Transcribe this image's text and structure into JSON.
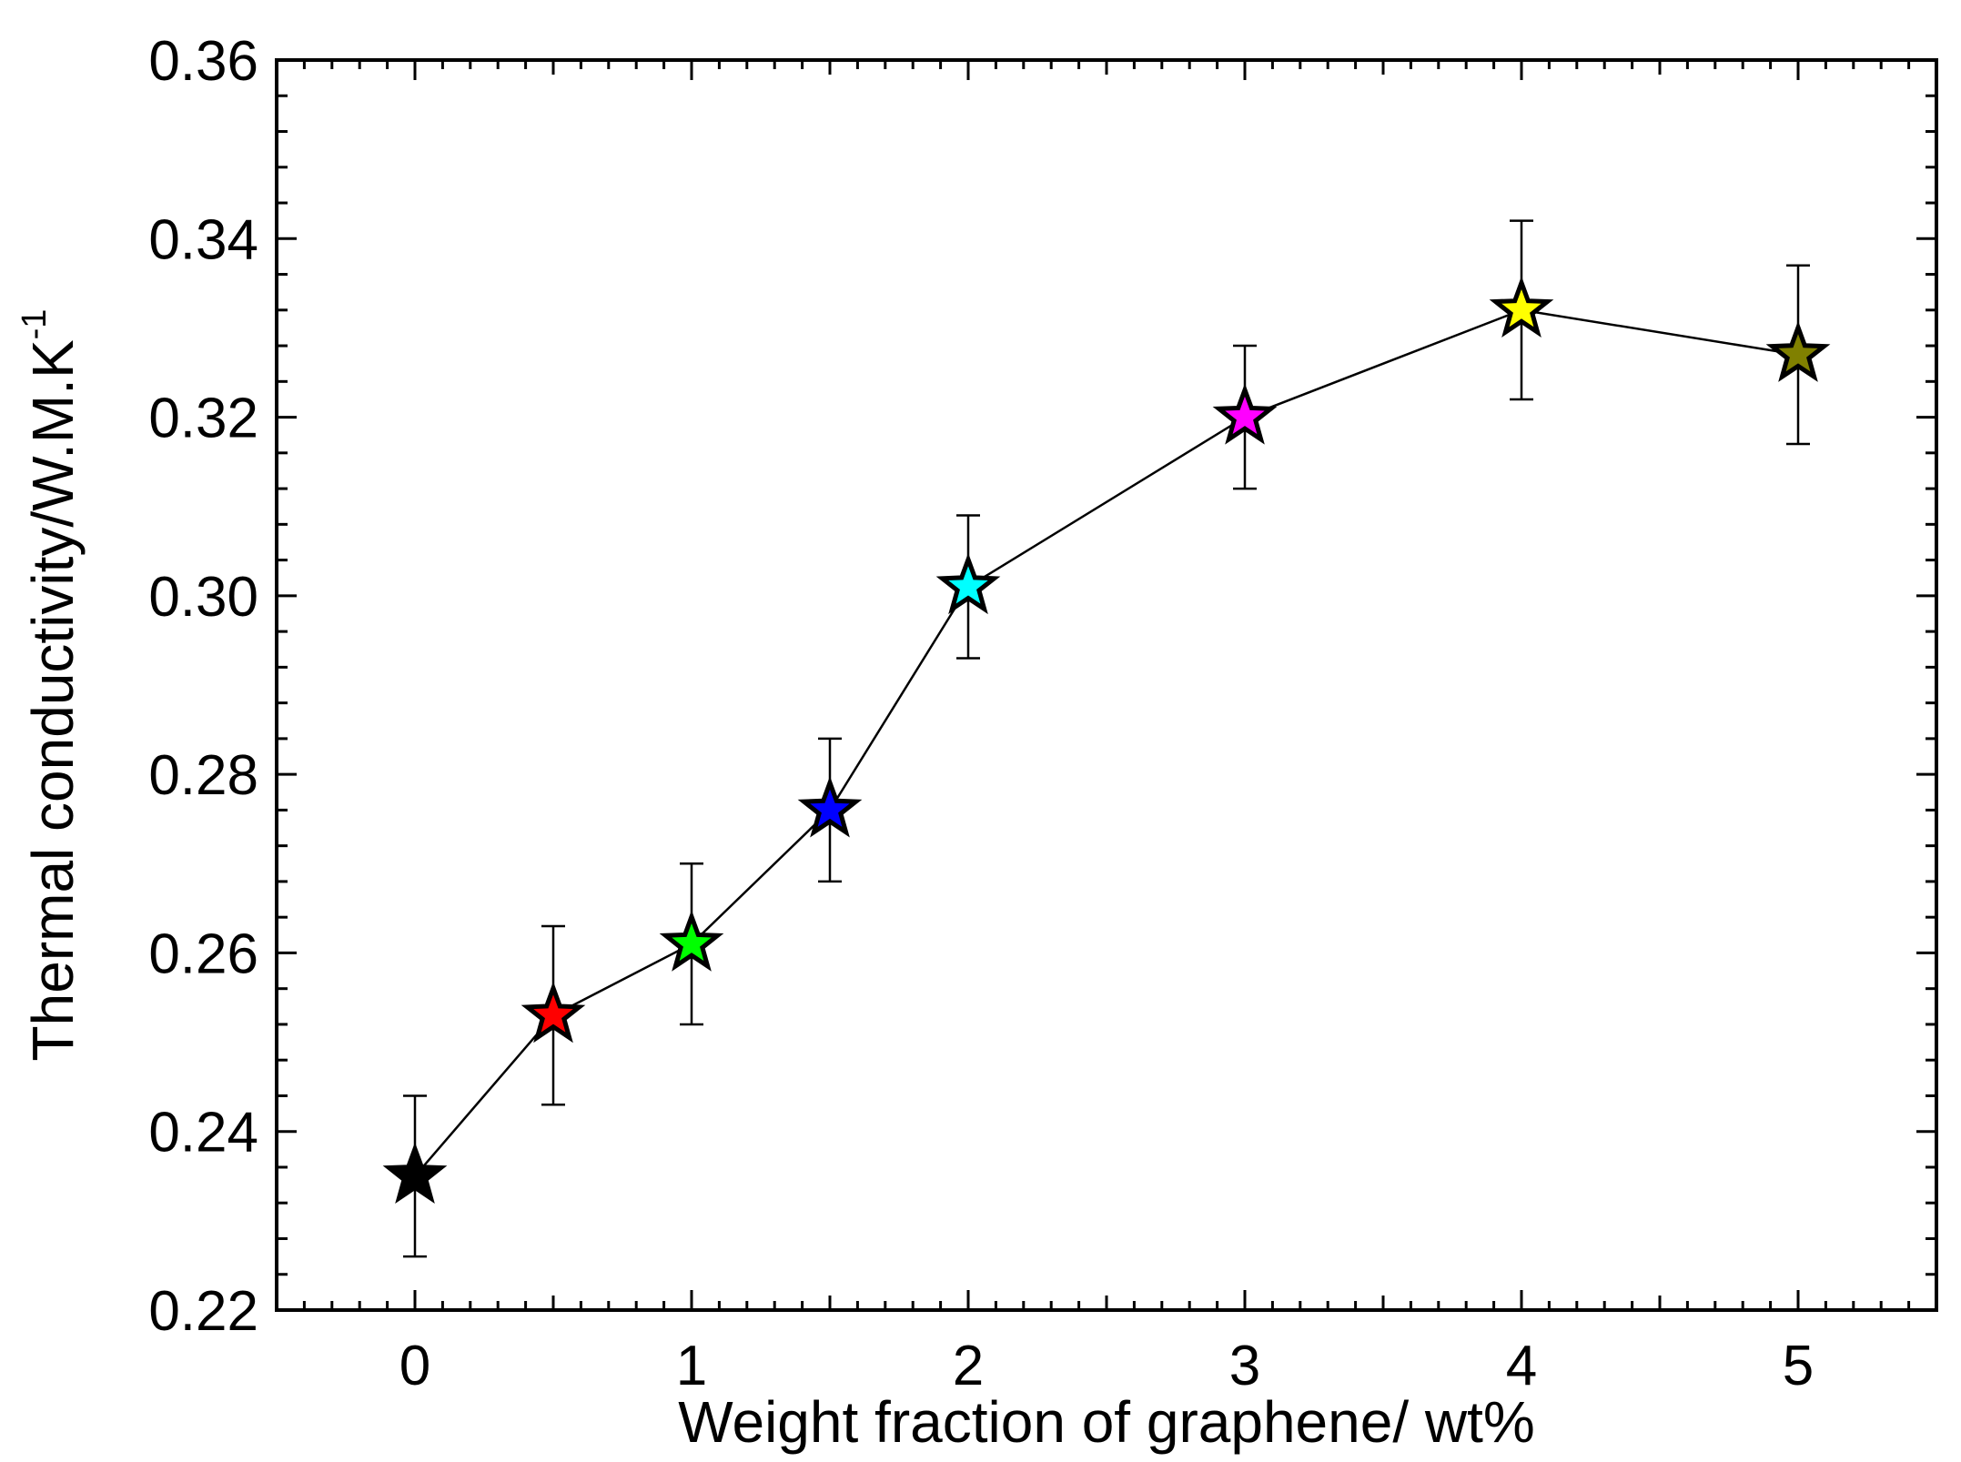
{
  "chart_data": {
    "type": "scatter",
    "title": "",
    "xlabel": "Weight fraction of graphene/ wt%",
    "ylabel": "Thermal conductivity/W.M.K",
    "ylabel_superscript": "-1",
    "xlim": [
      -0.5,
      5.5
    ],
    "ylim": [
      0.22,
      0.36
    ],
    "x_ticks": [
      {
        "value": 0,
        "label": "0"
      },
      {
        "value": 1,
        "label": "1"
      },
      {
        "value": 2,
        "label": "2"
      },
      {
        "value": 3,
        "label": "3"
      },
      {
        "value": 4,
        "label": "4"
      },
      {
        "value": 5,
        "label": "5"
      }
    ],
    "y_ticks": [
      {
        "value": 0.22,
        "label": "0.22"
      },
      {
        "value": 0.24,
        "label": "0.24"
      },
      {
        "value": 0.26,
        "label": "0.26"
      },
      {
        "value": 0.28,
        "label": "0.28"
      },
      {
        "value": 0.3,
        "label": "0.30"
      },
      {
        "value": 0.32,
        "label": "0.32"
      },
      {
        "value": 0.34,
        "label": "0.34"
      },
      {
        "value": 0.36,
        "label": "0.36"
      }
    ],
    "x_minor_step": 0.1,
    "y_minor_step": 0.004,
    "grid": false,
    "legend": "none",
    "series": [
      {
        "name": "Thermal conductivity",
        "marker": "star",
        "line_color": "#000000",
        "points": [
          {
            "x": 0,
            "y": 0.235,
            "err": 0.009,
            "color": "#000000"
          },
          {
            "x": 0.5,
            "y": 0.253,
            "err": 0.01,
            "color": "#ff0000"
          },
          {
            "x": 1,
            "y": 0.261,
            "err": 0.009,
            "color": "#00ff00"
          },
          {
            "x": 1.5,
            "y": 0.276,
            "err": 0.008,
            "color": "#0000ff"
          },
          {
            "x": 2,
            "y": 0.301,
            "err": 0.008,
            "color": "#00ffff"
          },
          {
            "x": 3,
            "y": 0.32,
            "err": 0.008,
            "color": "#ff00ff"
          },
          {
            "x": 4,
            "y": 0.332,
            "err": 0.01,
            "color": "#ffff00"
          },
          {
            "x": 5,
            "y": 0.327,
            "err": 0.01,
            "color": "#808000"
          }
        ]
      }
    ]
  }
}
